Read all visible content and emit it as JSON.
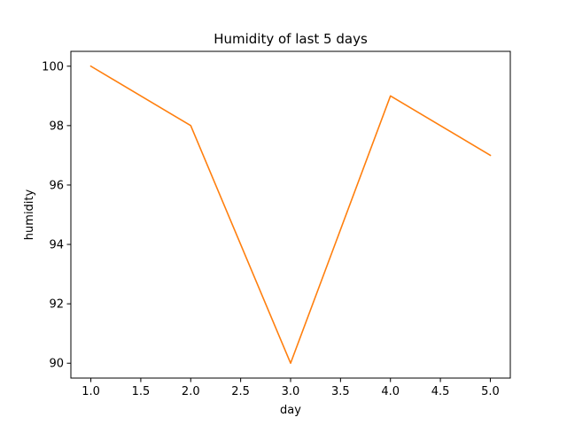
{
  "chart_data": {
    "type": "line",
    "title": "Humidity of last 5 days",
    "xlabel": "day",
    "ylabel": "humidity",
    "x": [
      1.0,
      2.0,
      3.0,
      4.0,
      5.0
    ],
    "series": [
      {
        "values": [
          100,
          98,
          90,
          99,
          97
        ],
        "color": "#ff7f0e"
      }
    ],
    "xlim": [
      0.8,
      5.2
    ],
    "ylim": [
      89.5,
      100.5
    ],
    "xticks": [
      "1.0",
      "1.5",
      "2.0",
      "2.5",
      "3.0",
      "3.5",
      "4.0",
      "4.5",
      "5.0"
    ],
    "yticks": [
      "90",
      "92",
      "94",
      "96",
      "98",
      "100"
    ],
    "grid": false,
    "legend": "none"
  }
}
